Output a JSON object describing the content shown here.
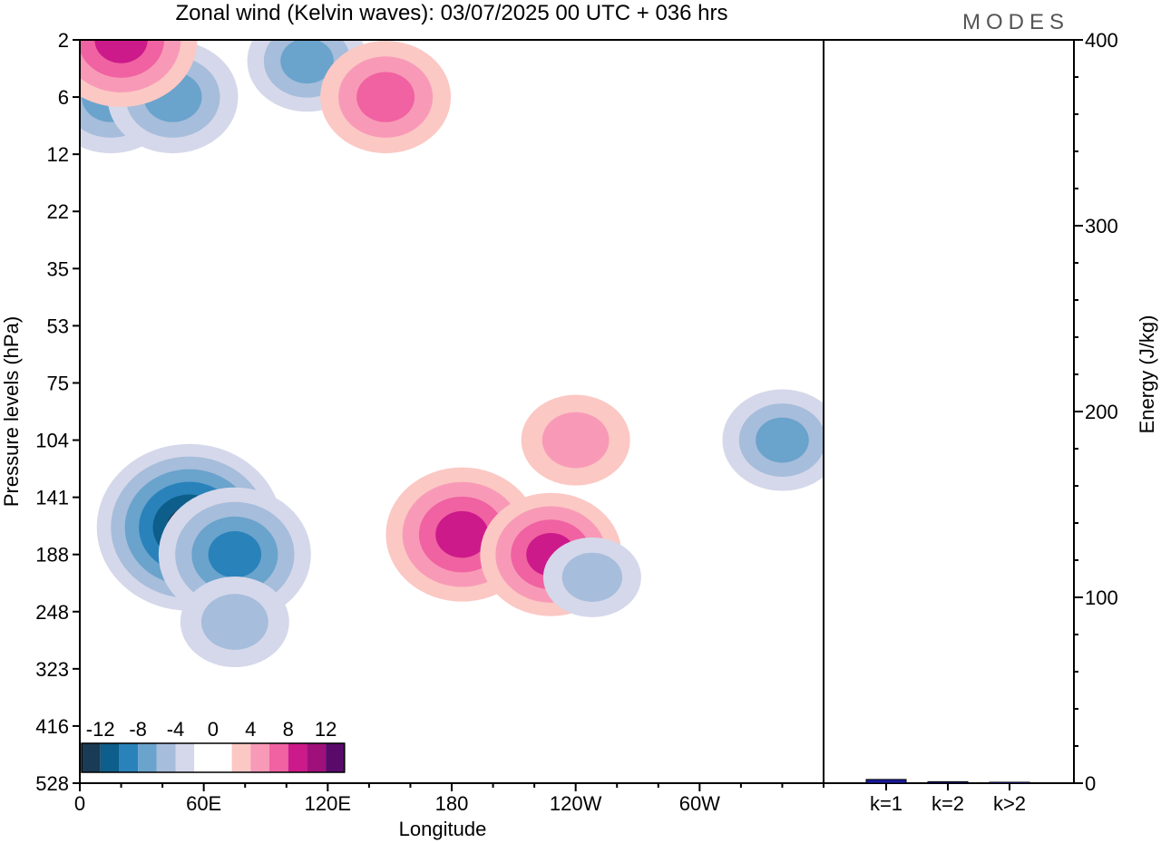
{
  "header": {
    "title": "Zonal wind (Kelvin waves):  03/07/2025  00 UTC  + 036 hrs",
    "brand": "MODES"
  },
  "colors": {
    "scale": [
      "#1a3b55",
      "#0d5e8a",
      "#2a82bb",
      "#6aa3cc",
      "#a6bddb",
      "#d5d8ea",
      "#ffffff",
      "#ffffff",
      "#fbc8c4",
      "#f89ab7",
      "#f062a1",
      "#cc1a8a",
      "#a0107a",
      "#5a0a6a"
    ],
    "energy_bar": "#1a1aa0"
  },
  "chart_data": [
    {
      "type": "heatmap",
      "title": "Zonal wind (Kelvin waves):  03/07/2025  00 UTC  + 036 hrs",
      "xlabel": "Longitude",
      "ylabel": "Pressure levels (hPa)",
      "x_ticks": [
        "0",
        "60E",
        "120E",
        "180",
        "120W",
        "60W"
      ],
      "x_tick_values": [
        0,
        60,
        120,
        180,
        240,
        300
      ],
      "xlim": [
        0,
        360
      ],
      "y_ticks": [
        "2",
        "6",
        "12",
        "22",
        "35",
        "53",
        "75",
        "104",
        "141",
        "188",
        "248",
        "323",
        "416",
        "528"
      ],
      "color_scale_labels": [
        "-12",
        "-8",
        "-4",
        "0",
        "4",
        "8",
        "12"
      ],
      "features": [
        {
          "lon": 53,
          "level": "164",
          "value": -12
        },
        {
          "lon": 75,
          "level": "188",
          "value": -9
        },
        {
          "lon": 75,
          "level": "260",
          "value": -5
        },
        {
          "lon": 15,
          "level": "6",
          "value": -7
        },
        {
          "lon": 45,
          "level": "6",
          "value": -7
        },
        {
          "lon": 110,
          "level": "3",
          "value": -6
        },
        {
          "lon": 20,
          "level": "2",
          "value": 9
        },
        {
          "lon": 185,
          "level": "170",
          "value": 9
        },
        {
          "lon": 228,
          "level": "188",
          "value": 8
        },
        {
          "lon": 240,
          "level": "104",
          "value": 5
        },
        {
          "lon": 148,
          "level": "6",
          "value": 7
        },
        {
          "lon": 340,
          "level": "104",
          "value": -6
        },
        {
          "lon": 248,
          "level": "210",
          "value": -4
        }
      ]
    },
    {
      "type": "bar",
      "categories": [
        "k=1",
        "k=2",
        "k>2"
      ],
      "values": [
        2.0,
        0.8,
        0.5
      ],
      "ylabel": "Energy (J/kg)",
      "ylim": [
        0,
        400
      ],
      "y_ticks": [
        0,
        100,
        200,
        300,
        400
      ]
    }
  ]
}
